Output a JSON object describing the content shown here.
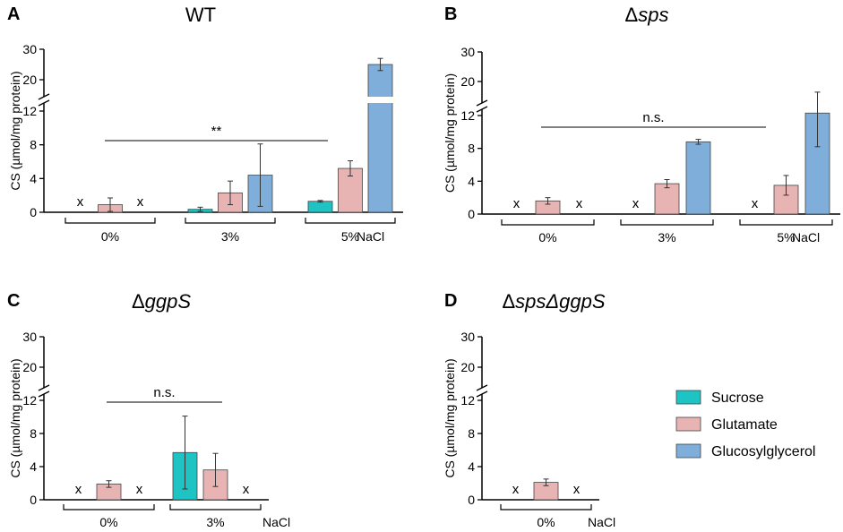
{
  "yaxis_label": "CS (µmol/mg protein)",
  "nacl_label": "NaCl",
  "absent_marker": "x",
  "legend": [
    {
      "name": "Sucrose",
      "color": "#1ec3c3"
    },
    {
      "name": "Glutamate",
      "color": "#e7b3b3"
    },
    {
      "name": "Glucosylglycerol",
      "color": "#7eaed9"
    }
  ],
  "colors": {
    "Sucrose": "#1ec3c3",
    "Glutamate": "#e7b3b3",
    "Glucosylglycerol": "#7eaed9",
    "axis": "#000000",
    "error": "#333333"
  },
  "chart_data": [
    {
      "type": "bar",
      "panel": "A",
      "title": "WT",
      "title_italic": false,
      "categories": [
        "0%",
        "3%",
        "5%"
      ],
      "series": [
        {
          "name": "Sucrose",
          "values": [
            null,
            0.35,
            1.3
          ],
          "errors": [
            null,
            0.25,
            0.1
          ]
        },
        {
          "name": "Glutamate",
          "values": [
            0.9,
            2.3,
            5.2
          ],
          "errors": [
            0.8,
            1.4,
            0.9
          ]
        },
        {
          "name": "Glucosylglycerol",
          "values": [
            null,
            4.4,
            25.0
          ],
          "errors": [
            null,
            3.7,
            2.0
          ]
        }
      ],
      "yticks": [
        0,
        4,
        8,
        12,
        20,
        30
      ],
      "ylim_lower": [
        0,
        12.5
      ],
      "ylim_upper": [
        15,
        30
      ],
      "ylabel": "CS (µmol/mg protein)",
      "xlabel": "NaCl",
      "annotation": "**"
    },
    {
      "type": "bar",
      "panel": "B",
      "title": "Δsps",
      "title_prefix": "Δ",
      "title_rest": "sps",
      "title_italic": true,
      "categories": [
        "0%",
        "3%",
        "5%"
      ],
      "series": [
        {
          "name": "Sucrose",
          "values": [
            null,
            null,
            null
          ],
          "errors": [
            null,
            null,
            null
          ]
        },
        {
          "name": "Glutamate",
          "values": [
            1.6,
            3.7,
            3.5
          ],
          "errors": [
            0.4,
            0.5,
            1.2
          ]
        },
        {
          "name": "Glucosylglycerol",
          "values": [
            null,
            8.8,
            12.3
          ],
          "errors": [
            null,
            0.3,
            4.1
          ]
        }
      ],
      "yticks": [
        0,
        4,
        8,
        12,
        20,
        30
      ],
      "ylim_lower": [
        0,
        12.5
      ],
      "ylim_upper": [
        15,
        30
      ],
      "ylabel": "CS (µmol/mg protein)",
      "xlabel": "NaCl",
      "annotation": "n.s."
    },
    {
      "type": "bar",
      "panel": "C",
      "title": "ΔggpS",
      "title_prefix": "Δ",
      "title_rest": "ggpS",
      "title_italic": true,
      "categories": [
        "0%",
        "3%"
      ],
      "series": [
        {
          "name": "Sucrose",
          "values": [
            null,
            5.7
          ],
          "errors": [
            null,
            4.4
          ]
        },
        {
          "name": "Glutamate",
          "values": [
            1.9,
            3.6
          ],
          "errors": [
            0.4,
            2.0
          ]
        },
        {
          "name": "Glucosylglycerol",
          "values": [
            null,
            null
          ],
          "errors": [
            null,
            null
          ]
        }
      ],
      "yticks": [
        0,
        4,
        8,
        12,
        20,
        30
      ],
      "ylim_lower": [
        0,
        12.5
      ],
      "ylim_upper": [
        15,
        30
      ],
      "ylabel": "CS (µmol/mg protein)",
      "xlabel": "NaCl",
      "annotation": "n.s."
    },
    {
      "type": "bar",
      "panel": "D",
      "title": "ΔspsΔggpS",
      "title_prefix": "Δ",
      "title_rest": "spsΔggpS",
      "title_italic": true,
      "categories": [
        "0%"
      ],
      "series": [
        {
          "name": "Sucrose",
          "values": [
            null
          ],
          "errors": [
            null
          ]
        },
        {
          "name": "Glutamate",
          "values": [
            2.1
          ],
          "errors": [
            0.4
          ]
        },
        {
          "name": "Glucosylglycerol",
          "values": [
            null
          ],
          "errors": [
            null
          ]
        }
      ],
      "yticks": [
        0,
        4,
        8,
        12,
        20,
        30
      ],
      "ylim_lower": [
        0,
        12.5
      ],
      "ylim_upper": [
        15,
        30
      ],
      "ylabel": "CS (µmol/mg protein)",
      "xlabel": "NaCl",
      "annotation": ""
    }
  ]
}
